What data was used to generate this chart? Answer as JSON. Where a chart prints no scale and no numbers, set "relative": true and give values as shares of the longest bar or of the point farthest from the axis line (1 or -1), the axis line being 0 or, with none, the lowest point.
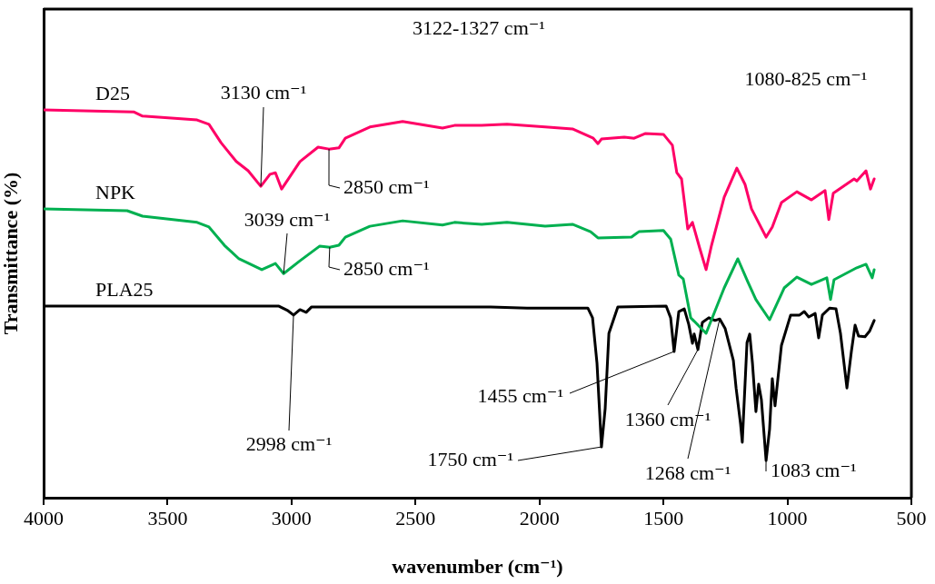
{
  "chart_data": {
    "type": "line",
    "relative": true,
    "xlabel": "wavenumber (cm⁻¹)",
    "ylabel": "Transmittance (%)",
    "xlim": [
      4000,
      500
    ],
    "xticks": [
      4000,
      3500,
      3000,
      2500,
      2000,
      1500,
      1000,
      500
    ],
    "grid": false,
    "legend": false,
    "marker": "none",
    "line_style": "solid",
    "series": [
      {
        "name": "D25",
        "color": "#ff0066",
        "x": [
          4000,
          3637,
          3601,
          3381,
          3333,
          3285,
          3223,
          3175,
          3124,
          3087,
          3065,
          3040,
          2966,
          2893,
          2849,
          2809,
          2783,
          2684,
          2552,
          2391,
          2343,
          2233,
          2131,
          1977,
          1867,
          1783,
          1764,
          1750,
          1658,
          1618,
          1574,
          1500,
          1464,
          1446,
          1427,
          1402,
          1383,
          1354,
          1328,
          1306,
          1255,
          1204,
          1171,
          1145,
          1086,
          1061,
          1024,
          962,
          903,
          848,
          833,
          815,
          731,
          720,
          683,
          665,
          650
        ],
        "values": [
          1.0,
          0.995,
          0.984,
          0.974,
          0.963,
          0.916,
          0.867,
          0.843,
          0.803,
          0.834,
          0.838,
          0.796,
          0.867,
          0.904,
          0.899,
          0.902,
          0.927,
          0.956,
          0.97,
          0.953,
          0.96,
          0.96,
          0.963,
          0.956,
          0.951,
          0.927,
          0.913,
          0.925,
          0.93,
          0.927,
          0.939,
          0.937,
          0.909,
          0.838,
          0.822,
          0.693,
          0.71,
          0.644,
          0.588,
          0.651,
          0.775,
          0.85,
          0.808,
          0.745,
          0.672,
          0.698,
          0.761,
          0.789,
          0.768,
          0.792,
          0.717,
          0.785,
          0.822,
          0.817,
          0.843,
          0.796,
          0.822
        ]
      },
      {
        "name": "NPK",
        "color": "#00b050",
        "x": [
          4000,
          3663,
          3601,
          3381,
          3333,
          3271,
          3212,
          3120,
          3065,
          3032,
          2966,
          2886,
          2846,
          2809,
          2783,
          2684,
          2552,
          2391,
          2343,
          2233,
          2131,
          1977,
          1867,
          1794,
          1764,
          1629,
          1599,
          1500,
          1471,
          1438,
          1420,
          1390,
          1328,
          1255,
          1200,
          1160,
          1127,
          1072,
          1013,
          962,
          903,
          841,
          826,
          812,
          720,
          683,
          658,
          650
        ],
        "values": [
          0.745,
          0.74,
          0.726,
          0.71,
          0.698,
          0.651,
          0.616,
          0.588,
          0.604,
          0.578,
          0.611,
          0.649,
          0.646,
          0.651,
          0.672,
          0.7,
          0.714,
          0.703,
          0.71,
          0.705,
          0.71,
          0.7,
          0.705,
          0.686,
          0.67,
          0.672,
          0.686,
          0.689,
          0.667,
          0.574,
          0.564,
          0.464,
          0.424,
          0.541,
          0.616,
          0.557,
          0.511,
          0.459,
          0.541,
          0.569,
          0.55,
          0.567,
          0.511,
          0.562,
          0.593,
          0.602,
          0.567,
          0.588
        ]
      },
      {
        "name": "PLA25",
        "color": "#000000",
        "x": [
          4000,
          3051,
          3014,
          2992,
          2966,
          2941,
          2919,
          2197,
          2050,
          1805,
          1786,
          1768,
          1750,
          1735,
          1720,
          1684,
          1489,
          1471,
          1457,
          1438,
          1416,
          1398,
          1383,
          1376,
          1361,
          1343,
          1317,
          1292,
          1273,
          1251,
          1218,
          1207,
          1189,
          1182,
          1163,
          1152,
          1141,
          1127,
          1116,
          1105,
          1086,
          1072,
          1061,
          1050,
          1024,
          987,
          951,
          932,
          914,
          888,
          874,
          859,
          830,
          804,
          786,
          760,
          742,
          727,
          713,
          687,
          669,
          650
        ],
        "values": [
          0.494,
          0.494,
          0.482,
          0.471,
          0.485,
          0.478,
          0.492,
          0.492,
          0.489,
          0.489,
          0.464,
          0.347,
          0.131,
          0.23,
          0.424,
          0.492,
          0.494,
          0.464,
          0.377,
          0.48,
          0.487,
          0.447,
          0.398,
          0.422,
          0.382,
          0.452,
          0.464,
          0.457,
          0.461,
          0.436,
          0.354,
          0.283,
          0.19,
          0.143,
          0.4,
          0.422,
          0.347,
          0.222,
          0.293,
          0.253,
          0.096,
          0.176,
          0.307,
          0.237,
          0.393,
          0.471,
          0.471,
          0.48,
          0.466,
          0.475,
          0.412,
          0.471,
          0.489,
          0.487,
          0.424,
          0.283,
          0.377,
          0.445,
          0.417,
          0.415,
          0.429,
          0.457
        ]
      }
    ],
    "annotations": [
      {
        "text": "3130 cm⁻¹",
        "x": 3124,
        "y": 0.803
      },
      {
        "text": "2850 cm⁻¹",
        "x": 2849,
        "y": 0.899
      },
      {
        "text": "3039 cm⁻¹",
        "x": 3032,
        "y": 0.578
      },
      {
        "text": "2850 cm⁻¹",
        "x": 2846,
        "y": 0.646
      },
      {
        "text": "2998 cm⁻¹",
        "x": 2992,
        "y": 0.471
      },
      {
        "text": "1455 cm⁻¹",
        "x": 1457,
        "y": 0.377
      },
      {
        "text": "1360 cm⁻¹",
        "x": 1361,
        "y": 0.382
      },
      {
        "text": "1750 cm⁻¹",
        "x": 1750,
        "y": 0.131
      },
      {
        "text": "1268 cm⁻¹",
        "x": 1273,
        "y": 0.461
      },
      {
        "text": "1083 cm⁻¹",
        "x": 1086,
        "y": 0.096
      },
      "3122-1327 cm⁻¹",
      "1080-825 cm⁻¹"
    ]
  }
}
